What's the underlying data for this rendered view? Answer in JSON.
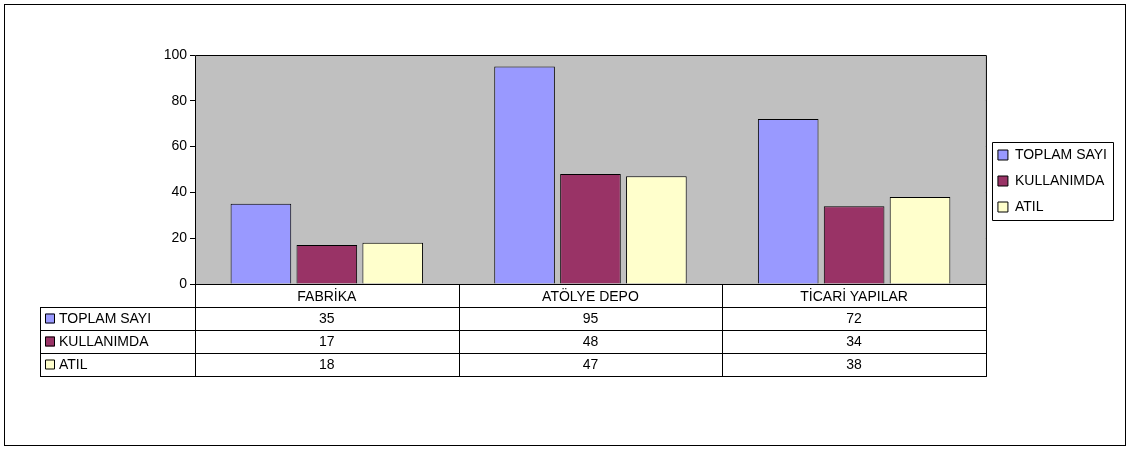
{
  "chart_data": {
    "type": "bar",
    "categories": [
      "FABRİKA",
      "ATÖLYE DEPO",
      "TİCARİ YAPILAR"
    ],
    "series": [
      {
        "name": "TOPLAM SAYI",
        "color": "#9999ff",
        "values": [
          35,
          95,
          72
        ]
      },
      {
        "name": "KULLANIMDA",
        "color": "#993366",
        "values": [
          17,
          48,
          34
        ]
      },
      {
        "name": "ATIL",
        "color": "#ffffcc",
        "values": [
          18,
          47,
          38
        ]
      }
    ],
    "ylim": [
      0,
      100
    ],
    "yticks": [
      0,
      20,
      40,
      60,
      80,
      100
    ],
    "grid": "y",
    "legend": "right",
    "data_labels": true
  }
}
